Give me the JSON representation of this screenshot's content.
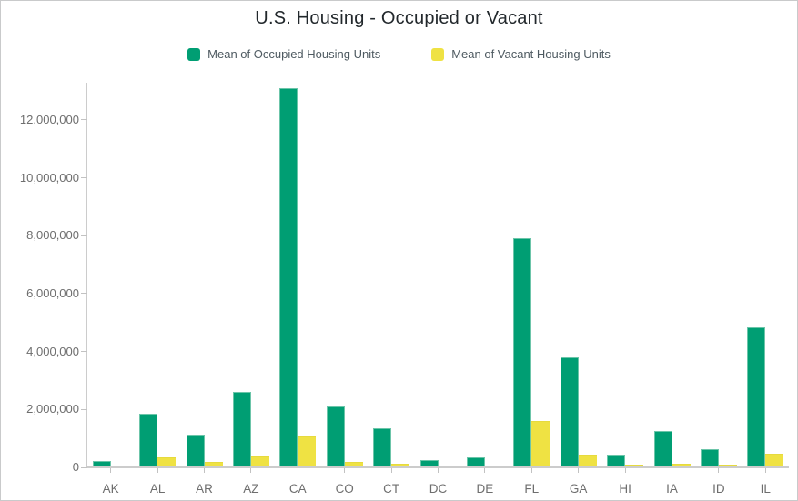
{
  "title": "U.S. Housing - Occupied or Vacant",
  "legend": {
    "occupied_label": "Mean of Occupied Housing Units",
    "vacant_label": "Mean of Vacant Housing Units"
  },
  "colors": {
    "occupied": "#009E73",
    "occupied_stroke": "#6cc5a9",
    "vacant": "#EFE243",
    "vacant_stroke": "#e6da3e",
    "axis": "#cccccc",
    "tick": "#c2c2c2",
    "axis_text": "#6e6e6e",
    "legend_text": "#4e5a61",
    "title_text": "#22282c",
    "border": "#c9cacb"
  },
  "chart_data": {
    "type": "bar",
    "title": "U.S. Housing - Occupied or Vacant",
    "xlabel": "",
    "ylabel": "",
    "grid": false,
    "legend_position": "top",
    "categories": [
      "AK",
      "AL",
      "AR",
      "AZ",
      "CA",
      "CO",
      "CT",
      "DC",
      "DE",
      "FL",
      "GA",
      "HI",
      "IA",
      "ID",
      "IL"
    ],
    "series": [
      {
        "name": "Mean of Occupied Housing Units",
        "color": "#009E73",
        "values": [
          230000,
          1860000,
          1140000,
          2620000,
          13100000,
          2100000,
          1360000,
          250000,
          340000,
          7900000,
          3800000,
          440000,
          1250000,
          620000,
          4850000
        ]
      },
      {
        "name": "Mean of Vacant Housing Units",
        "color": "#EFE243",
        "values": [
          70000,
          360000,
          190000,
          390000,
          1080000,
          200000,
          110000,
          30000,
          65000,
          1600000,
          450000,
          80000,
          120000,
          90000,
          460000
        ]
      }
    ],
    "ylim": [
      0,
      13300000
    ],
    "ytick_values": [
      0,
      2000000,
      4000000,
      6000000,
      8000000,
      10000000,
      12000000
    ],
    "ytick_labels": [
      "0",
      "2,000,000",
      "4,000,000",
      "6,000,000",
      "8,000,000",
      "10,000,000",
      "12,000,000"
    ]
  }
}
